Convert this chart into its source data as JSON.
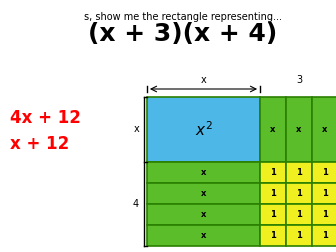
{
  "title_top": "s, show me the rectangle representing...",
  "title_expr": "(x + 3)(x + 4)",
  "red_text1": "4x + 12",
  "red_text2": "x + 12",
  "color_blue": "#4db8e8",
  "color_green": "#5cbd2a",
  "color_yellow": "#f0f020",
  "color_border": "#2a8000",
  "color_red": "#ff0000",
  "color_black": "#000000",
  "color_white": "#ffffff",
  "bg_color": "#ffffff",
  "fig_w": 3.36,
  "fig_h": 2.52,
  "dpi": 100
}
